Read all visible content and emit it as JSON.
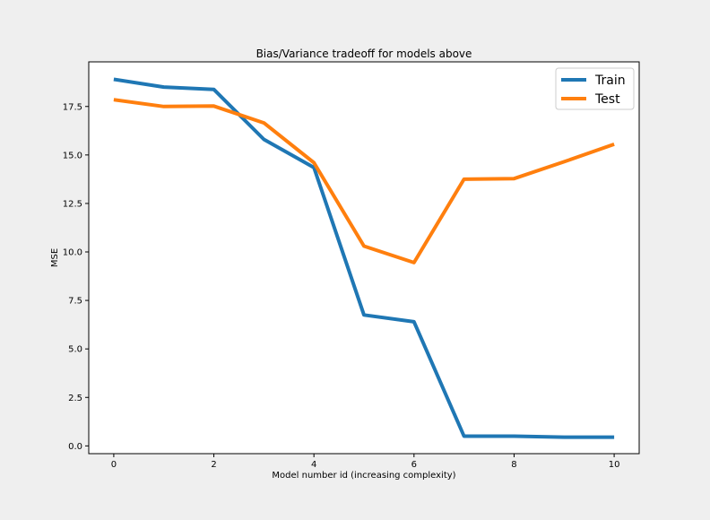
{
  "chart_data": {
    "type": "line",
    "title": "Bias/Variance tradeoff for models above",
    "xlabel": "Model number id (increasing complexity)",
    "ylabel": "MSE",
    "xlim": [
      -0.5,
      10.5
    ],
    "ylim": [
      -0.4,
      19.8
    ],
    "x": [
      0,
      1,
      2,
      3,
      4,
      5,
      6,
      7,
      8,
      9,
      10
    ],
    "xticks": [
      0,
      2,
      4,
      6,
      8,
      10
    ],
    "xtick_labels": [
      "0",
      "2",
      "4",
      "6",
      "8",
      "10"
    ],
    "yticks": [
      0.0,
      2.5,
      5.0,
      7.5,
      10.0,
      12.5,
      15.0,
      17.5
    ],
    "ytick_labels": [
      "0.0",
      "2.5",
      "5.0",
      "7.5",
      "10.0",
      "12.5",
      "15.0",
      "17.5"
    ],
    "grid": false,
    "legend_position": "top-right",
    "series": [
      {
        "name": "Train",
        "color": "#1f77b4",
        "values": [
          18.9,
          18.5,
          18.38,
          15.8,
          14.35,
          6.75,
          6.4,
          0.5,
          0.5,
          0.45,
          0.45
        ]
      },
      {
        "name": "Test",
        "color": "#ff7f0e",
        "values": [
          17.85,
          17.5,
          17.52,
          16.65,
          14.6,
          10.3,
          9.45,
          13.75,
          13.78,
          14.65,
          15.55
        ]
      }
    ]
  }
}
